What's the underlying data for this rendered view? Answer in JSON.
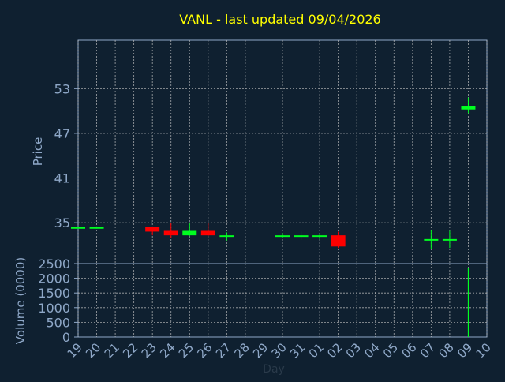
{
  "chart_data": [
    {
      "type": "candlestick",
      "title": "VANL - last updated 09/04/2026",
      "ylabel": "Price",
      "yticks": [
        35,
        41,
        47,
        53
      ],
      "ylim": [
        29.5,
        59.5
      ],
      "grid": true,
      "colors": {
        "up": "#00ff20",
        "down": "#ff0000",
        "text": "#ffff00",
        "axis": "#8fa8c8",
        "grid": "#c8c8c8",
        "background": "#0f2030"
      },
      "candles": [
        {
          "day": "19",
          "x": 0,
          "open": 34.4,
          "high": 34.4,
          "low": 34.2,
          "close": 34.4
        },
        {
          "day": "20",
          "x": 1,
          "open": 34.3,
          "high": 34.5,
          "low": 34.2,
          "close": 34.4
        },
        {
          "day": "23",
          "x": 4,
          "open": 34.4,
          "high": 34.5,
          "low": 33.3,
          "close": 33.8
        },
        {
          "day": "24",
          "x": 5,
          "open": 33.9,
          "high": 34.9,
          "low": 33.0,
          "close": 33.3
        },
        {
          "day": "25",
          "x": 6,
          "open": 33.3,
          "high": 35.0,
          "low": 33.2,
          "close": 33.9
        },
        {
          "day": "26",
          "x": 7,
          "open": 33.9,
          "high": 35.0,
          "low": 33.2,
          "close": 33.3
        },
        {
          "day": "27",
          "x": 8,
          "open": 33.2,
          "high": 33.7,
          "low": 32.6,
          "close": 33.3
        },
        {
          "day": "30",
          "x": 11,
          "open": 33.2,
          "high": 33.6,
          "low": 32.9,
          "close": 33.3
        },
        {
          "day": "31",
          "x": 12,
          "open": 33.2,
          "high": 33.8,
          "low": 32.7,
          "close": 33.3
        },
        {
          "day": "01",
          "x": 13,
          "open": 33.2,
          "high": 33.4,
          "low": 32.8,
          "close": 33.3
        },
        {
          "day": "02",
          "x": 14,
          "open": 33.3,
          "high": 33.8,
          "low": 31.6,
          "close": 31.8
        },
        {
          "day": "07",
          "x": 19,
          "open": 32.7,
          "high": 34.0,
          "low": 31.4,
          "close": 32.8
        },
        {
          "day": "08",
          "x": 20,
          "open": 32.7,
          "high": 33.9,
          "low": 31.6,
          "close": 32.8
        },
        {
          "day": "09",
          "x": 21,
          "open": 50.2,
          "high": 51.8,
          "low": 49.7,
          "close": 50.7
        }
      ]
    },
    {
      "type": "bar",
      "ylabel": "Volume (0000)",
      "xlabel": "Day",
      "yticks": [
        0,
        500,
        1000,
        1500,
        2000,
        2500
      ],
      "ylim": [
        0,
        2500
      ],
      "x_tick_labels": [
        "19",
        "20",
        "21",
        "22",
        "23",
        "24",
        "25",
        "26",
        "27",
        "28",
        "29",
        "30",
        "31",
        "01",
        "02",
        "03",
        "04",
        "05",
        "06",
        "07",
        "08",
        "09",
        "10"
      ],
      "volumes": [
        {
          "day": "09",
          "x": 21,
          "value": 2350
        }
      ]
    }
  ]
}
